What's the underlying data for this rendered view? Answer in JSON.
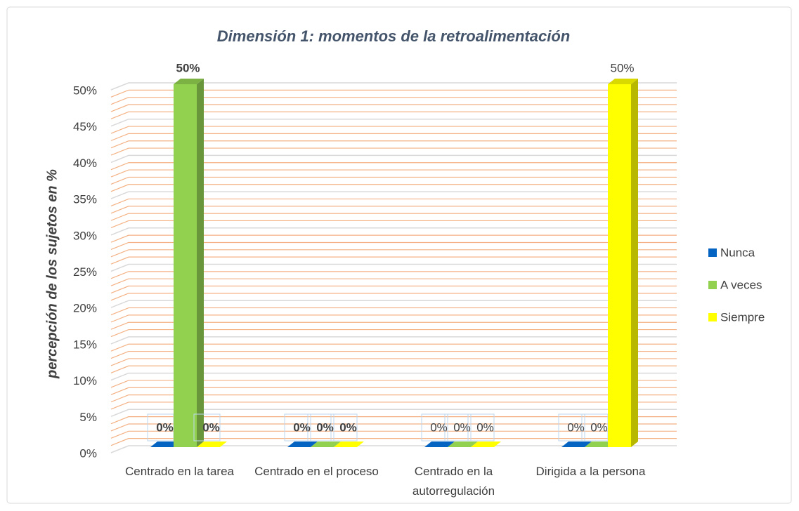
{
  "chart_data": {
    "type": "bar3d",
    "title": "Dimensión 1: momentos de la retroalimentación",
    "y_label": "percepción de los sujetos en %",
    "categories": [
      "Centrado en la tarea",
      "Centrado en el proceso",
      "Centrado en la autorregulación",
      "Dirigida a la persona"
    ],
    "series": [
      {
        "name": "Nunca",
        "color": "#0563c1",
        "values": [
          0,
          0,
          0,
          0
        ],
        "value_labels": [
          "0%",
          "0%",
          "0%",
          "0%"
        ]
      },
      {
        "name": "A veces",
        "color": "#92d050",
        "values": [
          50,
          0,
          0,
          0
        ],
        "value_labels": [
          "50%",
          "0%",
          "0%",
          "0%"
        ]
      },
      {
        "name": "Siempre",
        "color": "#ffff00",
        "values": [
          0,
          0,
          0,
          50
        ],
        "value_labels": [
          "0%",
          "0%",
          "0%",
          "50%"
        ]
      }
    ],
    "ylim": [
      0,
      50
    ],
    "yticks": [
      {
        "value": 0,
        "label": "0%"
      },
      {
        "value": 5,
        "label": "5%"
      },
      {
        "value": 10,
        "label": "10%"
      },
      {
        "value": 15,
        "label": "15%"
      },
      {
        "value": 20,
        "label": "20%"
      },
      {
        "value": 25,
        "label": "25%"
      },
      {
        "value": 30,
        "label": "30%"
      },
      {
        "value": 35,
        "label": "35%"
      },
      {
        "value": 40,
        "label": "40%"
      },
      {
        "value": 45,
        "label": "45%"
      },
      {
        "value": 50,
        "label": "50%"
      }
    ],
    "grid": true,
    "legend": "right"
  }
}
